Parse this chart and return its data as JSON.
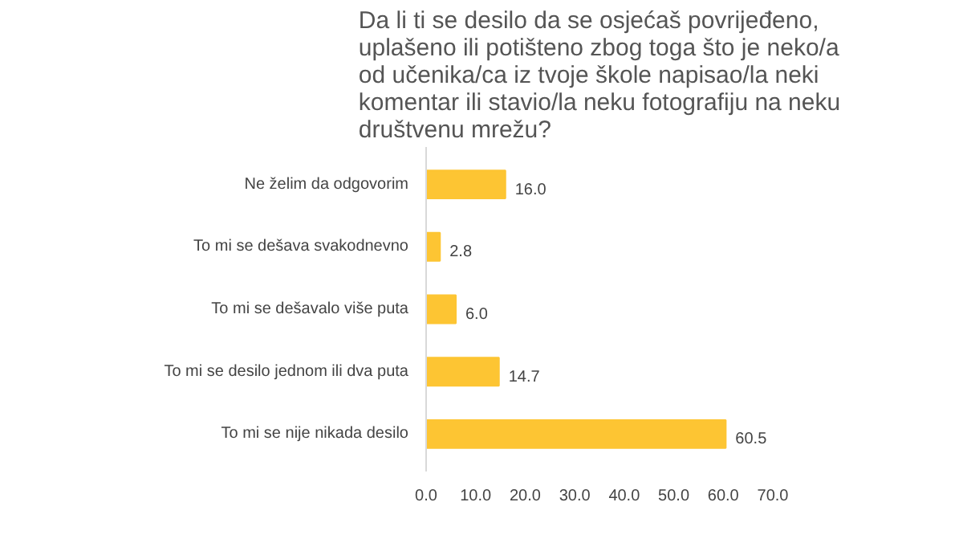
{
  "chart_data": {
    "type": "bar",
    "orientation": "horizontal",
    "title": "Da li ti se desilo da se osjećaš povrijeđeno, uplašeno ili potišteno zbog toga što je neko/a od učenika/ca iz tvoje škole napisao/la neki komentar ili stavio/la neku fotografiju na neku društvenu mrežu?",
    "categories": [
      "Ne želim da odgovorim",
      "To mi se dešava svakodnevno",
      "To mi se dešavalo više puta",
      "To mi se desilo jednom ili dva puta",
      "To mi se nije nikada desilo"
    ],
    "values": [
      16.0,
      2.8,
      6.0,
      14.7,
      60.5
    ],
    "value_labels": [
      "16.0",
      "2.8",
      "6.0",
      "14.7",
      "60.5"
    ],
    "color": "#fdc533",
    "xlim": [
      0,
      70
    ],
    "xticks": [
      {
        "value": 0,
        "label": "0.0"
      },
      {
        "value": 10,
        "label": "10.0"
      },
      {
        "value": 20,
        "label": "20.0"
      },
      {
        "value": 30,
        "label": "30.0"
      },
      {
        "value": 40,
        "label": "40.0"
      },
      {
        "value": 50,
        "label": "50.0"
      },
      {
        "value": 60,
        "label": "60.0"
      },
      {
        "value": 70,
        "label": "70.0"
      }
    ],
    "grid": false
  }
}
